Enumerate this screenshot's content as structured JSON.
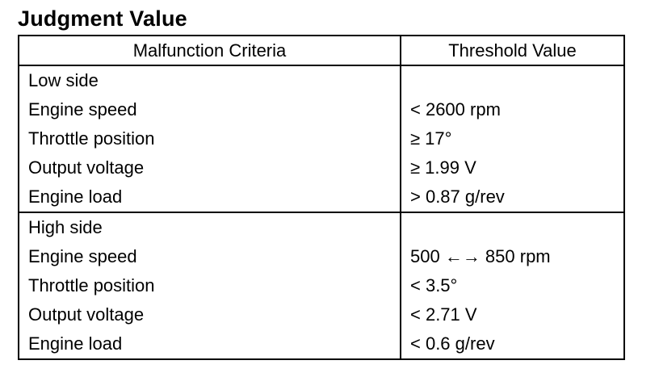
{
  "title": "Judgment Value",
  "table": {
    "headers": [
      "Malfunction Criteria",
      "Threshold Value"
    ],
    "groups": [
      {
        "label": "Low side",
        "rows": [
          {
            "criteria": "Engine speed",
            "threshold": "< 2600 rpm"
          },
          {
            "criteria": "Throttle position",
            "threshold": "≥ 17°"
          },
          {
            "criteria": "Output voltage",
            "threshold": "≥ 1.99 V"
          },
          {
            "criteria": "Engine load",
            "threshold": "> 0.87 g/rev"
          }
        ]
      },
      {
        "label": "High side",
        "rows": [
          {
            "criteria": "Engine speed",
            "threshold": "500 ←→ 850 rpm"
          },
          {
            "criteria": "Throttle position",
            "threshold": "< 3.5°"
          },
          {
            "criteria": "Output voltage",
            "threshold": "< 2.71 V"
          },
          {
            "criteria": "Engine load",
            "threshold": "< 0.6 g/rev"
          }
        ]
      }
    ]
  }
}
